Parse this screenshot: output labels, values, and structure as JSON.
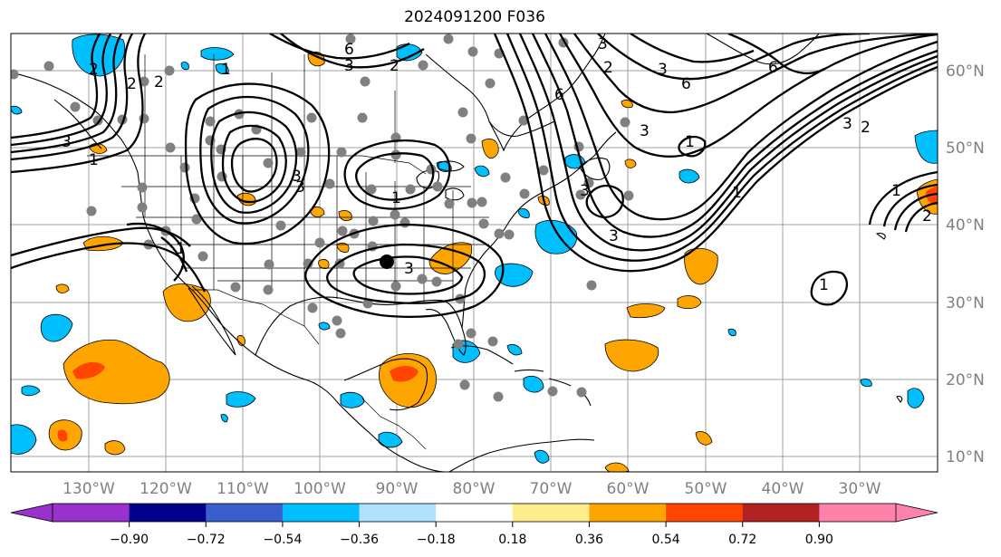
{
  "title": "2024091200 F036",
  "lat_labels": [
    "60°N",
    "50°N",
    "40°N",
    "30°N",
    "20°N",
    "10°N"
  ],
  "lon_labels": [
    "130°W",
    "120°W",
    "110°W",
    "100°W",
    "90°W",
    "80°W",
    "70°W",
    "60°W",
    "50°W",
    "40°W",
    "30°W"
  ],
  "colorbar": {
    "ticks": [
      "−0.90",
      "−0.72",
      "−0.54",
      "−0.36",
      "−0.18",
      "0.18",
      "0.36",
      "0.54",
      "0.72",
      "0.90"
    ],
    "colors": [
      "#9932cc",
      "#00008b",
      "#3a5fcd",
      "#00bfff",
      "#b0e2ff",
      "#ffffff",
      "#ffec8b",
      "#ffa500",
      "#ff4500",
      "#b22222",
      "#ff82ab"
    ]
  },
  "contour_labels": [
    "1",
    "2",
    "3",
    "6"
  ],
  "colors": {
    "grid": "#a0a0a0",
    "station_dot": "#808080",
    "axis_text": "#808080"
  }
}
